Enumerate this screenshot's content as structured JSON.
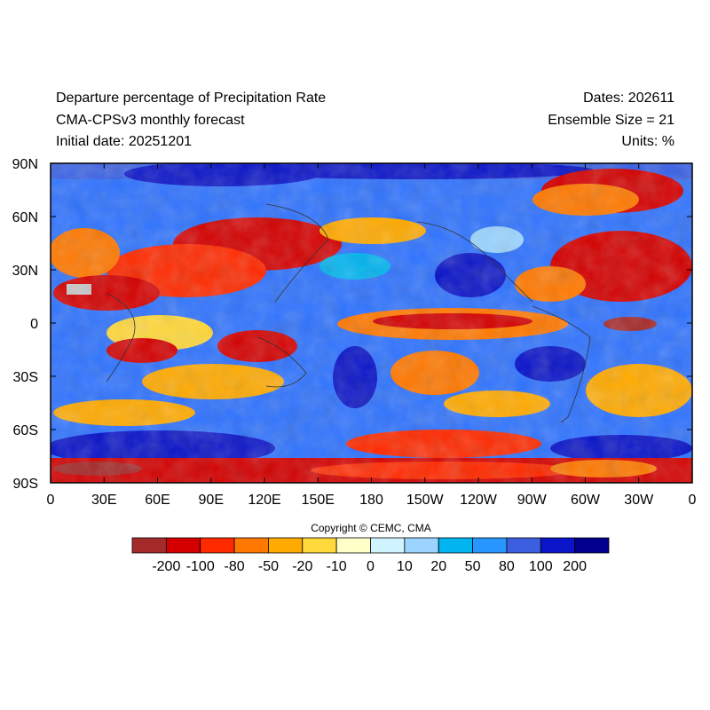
{
  "header": {
    "title": "Departure percentage of Precipitation Rate",
    "model": "CMA-CPSv3 monthly forecast",
    "initial_date": "Initial date: 20251201",
    "dates": "Dates: 202611",
    "ensemble": "Ensemble Size = 21",
    "units": "Units: %"
  },
  "axes": {
    "lat_labels": [
      "90N",
      "60N",
      "30N",
      "0",
      "30S",
      "60S",
      "90S"
    ],
    "lon_labels": [
      "0",
      "30E",
      "60E",
      "90E",
      "120E",
      "150E",
      "180",
      "150W",
      "120W",
      "90W",
      "60W",
      "30W",
      "0"
    ]
  },
  "copyright": "Copyright © CEMC, CMA",
  "colorbar": {
    "labels": [
      "-200",
      "-100",
      "-80",
      "-50",
      "-20",
      "-10",
      "0",
      "10",
      "20",
      "50",
      "80",
      "100",
      "200"
    ],
    "colors": [
      "#a52a2a",
      "#d40000",
      "#ff2a00",
      "#ff7800",
      "#ffaa00",
      "#ffd83c",
      "#ffffc8",
      "#d0f4ff",
      "#9ad4ff",
      "#00b4f0",
      "#2896ff",
      "#3c5fe0",
      "#0a14c8",
      "#00008c"
    ]
  }
}
